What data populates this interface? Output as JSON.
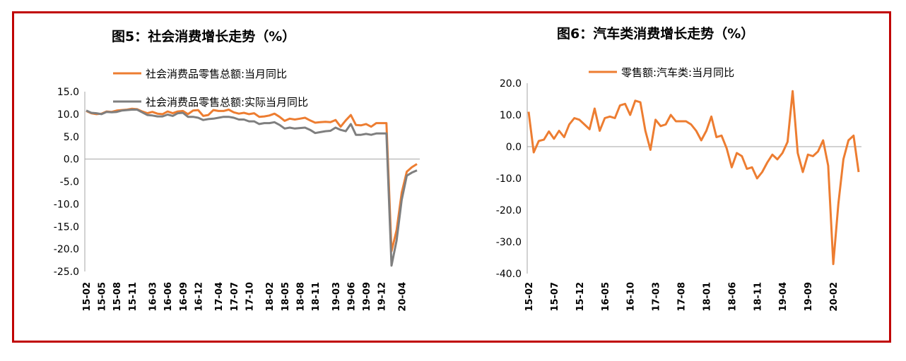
{
  "colors": {
    "frame": "#c00000",
    "orange": "#ED7D31",
    "gray": "#7F7F7F",
    "zero_line": "#a6a6a6",
    "text": "#000000"
  },
  "chart_data": [
    {
      "type": "line",
      "title": "图5：社会消费增长走势（%）",
      "ylim": [
        -25,
        15
      ],
      "yticks": [
        15,
        10,
        5,
        0,
        -5,
        -10,
        -15,
        -20,
        -25
      ],
      "ytick_labels": [
        "15.0",
        "10.0",
        "5.0",
        "0.0",
        "-5.0",
        "-10.0",
        "-15.0",
        "-20.0",
        "-25.0"
      ],
      "xtick_labels": [
        "15-02",
        "15-05",
        "15-08",
        "15-11",
        "16-03",
        "16-06",
        "16-09",
        "16-12",
        "17-04",
        "17-07",
        "17-10",
        "18-02",
        "18-05",
        "18-08",
        "18-11",
        "19-03",
        "19-06",
        "19-09",
        "19-12",
        "20-04"
      ],
      "legend_position": "top",
      "grid": false,
      "x": [
        "15-02",
        "15-03",
        "15-04",
        "15-05",
        "15-06",
        "15-07",
        "15-08",
        "15-09",
        "15-10",
        "15-11",
        "15-12",
        "16-01",
        "16-02",
        "16-03",
        "16-04",
        "16-05",
        "16-06",
        "16-07",
        "16-08",
        "16-09",
        "16-10",
        "16-11",
        "16-12",
        "17-01",
        "17-02",
        "17-03",
        "17-04",
        "17-05",
        "17-06",
        "17-07",
        "17-08",
        "17-09",
        "17-10",
        "17-11",
        "17-12",
        "18-01",
        "18-02",
        "18-03",
        "18-04",
        "18-05",
        "18-06",
        "18-07",
        "18-08",
        "18-09",
        "18-10",
        "18-11",
        "18-12",
        "19-01",
        "19-02",
        "19-03",
        "19-04",
        "19-05",
        "19-06",
        "19-07",
        "19-08",
        "19-09",
        "19-10",
        "19-11",
        "19-12",
        "20-01",
        "20-02",
        "20-03",
        "20-04",
        "20-05",
        "20-06",
        "20-07"
      ],
      "series": [
        {
          "name": "社会消费品零售总额:当月同比",
          "color": "#ED7D31",
          "values": [
            10.7,
            10.2,
            10.0,
            10.1,
            10.6,
            10.5,
            10.8,
            10.9,
            11.0,
            11.2,
            11.1,
            10.6,
            10.2,
            10.5,
            10.1,
            10.0,
            10.6,
            10.2,
            10.6,
            10.7,
            10.0,
            10.8,
            10.9,
            9.6,
            9.8,
            10.9,
            10.7,
            10.7,
            11.0,
            10.4,
            10.1,
            10.3,
            10.0,
            10.2,
            9.4,
            9.5,
            9.7,
            10.1,
            9.4,
            8.5,
            9.0,
            8.8,
            9.0,
            9.2,
            8.6,
            8.1,
            8.2,
            8.3,
            8.2,
            8.7,
            7.2,
            8.6,
            9.8,
            7.6,
            7.5,
            7.8,
            7.2,
            8.0,
            8.0,
            8.0,
            -20.5,
            -15.8,
            -7.5,
            -2.8,
            -1.8,
            -1.1
          ]
        },
        {
          "name": "社会消费品零售总额:实际当月同比",
          "color": "#7F7F7F",
          "values": [
            10.8,
            10.3,
            10.2,
            10.0,
            10.5,
            10.4,
            10.5,
            10.8,
            10.9,
            11.0,
            11.0,
            10.4,
            9.8,
            9.7,
            9.5,
            9.5,
            9.9,
            9.6,
            10.2,
            10.3,
            9.4,
            9.4,
            9.2,
            8.7,
            8.9,
            9.0,
            9.2,
            9.4,
            9.4,
            9.2,
            8.8,
            8.8,
            8.4,
            8.4,
            7.8,
            8.0,
            8.0,
            8.2,
            7.6,
            6.8,
            7.0,
            6.8,
            6.9,
            7.0,
            6.5,
            5.8,
            6.0,
            6.2,
            6.3,
            7.0,
            6.5,
            6.2,
            7.8,
            5.4,
            5.4,
            5.6,
            5.4,
            5.7,
            5.7,
            5.7,
            -23.7,
            -18.1,
            -9.1,
            -3.7,
            -3.0,
            -2.5
          ]
        }
      ]
    },
    {
      "type": "line",
      "title": "图6：汽车类消费增长走势（%）",
      "ylim": [
        -40,
        20
      ],
      "yticks": [
        20,
        10,
        0,
        -10,
        -20,
        -30,
        -40
      ],
      "ytick_labels": [
        "20.0",
        "10.0",
        "0.0",
        "-10.0",
        "-20.0",
        "-30.0",
        "-40.0"
      ],
      "xtick_labels": [
        "15-02",
        "15-07",
        "15-12",
        "16-05",
        "16-10",
        "17-03",
        "17-08",
        "18-01",
        "18-06",
        "18-11",
        "19-04",
        "19-09",
        "20-02"
      ],
      "legend_position": "top",
      "grid": false,
      "x": [
        "15-02",
        "15-03",
        "15-04",
        "15-05",
        "15-06",
        "15-07",
        "15-08",
        "15-09",
        "15-10",
        "15-11",
        "15-12",
        "16-01",
        "16-02",
        "16-03",
        "16-04",
        "16-05",
        "16-06",
        "16-07",
        "16-08",
        "16-09",
        "16-10",
        "16-11",
        "16-12",
        "17-01",
        "17-02",
        "17-03",
        "17-04",
        "17-05",
        "17-06",
        "17-07",
        "17-08",
        "17-09",
        "17-10",
        "17-11",
        "17-12",
        "18-01",
        "18-02",
        "18-03",
        "18-04",
        "18-05",
        "18-06",
        "18-07",
        "18-08",
        "18-09",
        "18-10",
        "18-11",
        "18-12",
        "19-01",
        "19-02",
        "19-03",
        "19-04",
        "19-05",
        "19-06",
        "19-07",
        "19-08",
        "19-09",
        "19-10",
        "19-11",
        "19-12",
        "20-01",
        "20-02",
        "20-03",
        "20-04",
        "20-05",
        "20-06",
        "20-07"
      ],
      "series": [
        {
          "name": "零售额:汽车类:当月同比",
          "color": "#ED7D31",
          "values": [
            11.0,
            -1.8,
            1.8,
            2.2,
            4.8,
            2.5,
            5.0,
            3.0,
            7.0,
            9.0,
            8.5,
            7.0,
            5.5,
            12.0,
            5.0,
            9.0,
            9.5,
            9.0,
            13.0,
            13.5,
            10.0,
            14.5,
            14.0,
            5.0,
            -1.0,
            8.5,
            6.5,
            7.0,
            10.0,
            8.0,
            8.0,
            8.0,
            7.0,
            5.0,
            2.0,
            5.0,
            9.5,
            3.0,
            3.5,
            -0.5,
            -6.5,
            -2.0,
            -3.0,
            -7.0,
            -6.5,
            -10.0,
            -8.0,
            -5.0,
            -2.5,
            -4.0,
            -2.0,
            1.5,
            17.5,
            -2.0,
            -8.0,
            -2.5,
            -3.0,
            -1.5,
            2.0,
            -6.0,
            -37.0,
            -18.0,
            -4.0,
            2.0,
            3.5,
            -8.0
          ]
        }
      ]
    }
  ]
}
